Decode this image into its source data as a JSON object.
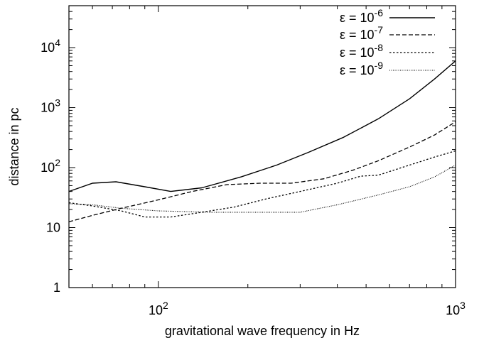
{
  "chart_data": {
    "type": "line",
    "xlabel": "gravitational wave frequency in Hz",
    "ylabel": "distance in pc",
    "xscale": "log",
    "yscale": "log",
    "xlim": [
      50,
      1000
    ],
    "ylim": [
      1,
      50000
    ],
    "x_ticks": [
      {
        "value": 100,
        "base": "10",
        "exp": "2"
      },
      {
        "value": 1000,
        "base": "10",
        "exp": "3"
      }
    ],
    "y_ticks": [
      {
        "value": 1,
        "base": "1",
        "exp": ""
      },
      {
        "value": 10,
        "base": "10",
        "exp": ""
      },
      {
        "value": 100,
        "base": "10",
        "exp": "2"
      },
      {
        "value": 1000,
        "base": "10",
        "exp": "3"
      },
      {
        "value": 10000,
        "base": "10",
        "exp": "4"
      }
    ],
    "grid": false,
    "legend_position": "top-right",
    "series": [
      {
        "name_base": "ε = 10",
        "name_exp": "-6",
        "dash": "solid",
        "x": [
          50,
          60,
          72,
          90,
          110,
          140,
          190,
          250,
          320,
          420,
          550,
          700,
          850,
          1000
        ],
        "y": [
          40,
          55,
          58,
          48,
          40,
          46,
          70,
          110,
          180,
          320,
          650,
          1400,
          3000,
          6000
        ]
      },
      {
        "name_base": "ε = 10",
        "name_exp": "-7",
        "dash": "dashed",
        "x": [
          50,
          60,
          75,
          100,
          130,
          170,
          220,
          280,
          360,
          450,
          550,
          700,
          850,
          1000
        ],
        "y": [
          12.5,
          16,
          21,
          29,
          40,
          52,
          55,
          55,
          65,
          90,
          130,
          220,
          350,
          580
        ]
      },
      {
        "name_base": "ε = 10",
        "name_exp": "-8",
        "dash": "dotted",
        "x": [
          50,
          60,
          75,
          90,
          110,
          140,
          180,
          230,
          300,
          400,
          480,
          550,
          700,
          850,
          1000
        ],
        "y": [
          26,
          23,
          19,
          15,
          15,
          18,
          22,
          30,
          40,
          55,
          72,
          75,
          110,
          150,
          190
        ]
      },
      {
        "name_base": "ε = 10",
        "name_exp": "-9",
        "dash": "fine-dotted",
        "x": [
          50,
          60,
          75,
          100,
          150,
          200,
          250,
          300,
          400,
          550,
          700,
          850,
          1000
        ],
        "y": [
          25,
          24,
          21,
          19,
          18,
          18,
          18,
          18,
          24,
          35,
          48,
          70,
          110
        ]
      }
    ]
  }
}
